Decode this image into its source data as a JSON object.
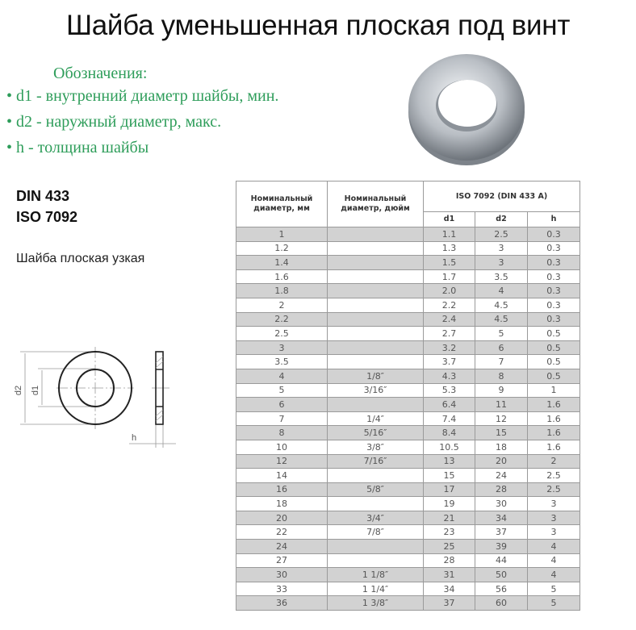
{
  "title": "Шайба уменьшенная плоская под винт",
  "legend": {
    "heading": "Обозначения:",
    "items": [
      "• d1 - внутренний диаметр шайбы, мин.",
      "• d2 - наружный диаметр, макс.",
      "• h - толщина шайбы"
    ]
  },
  "standards": [
    "DIN 433",
    "ISO 7092"
  ],
  "subtitle": "Шайба плоская узкая",
  "drawing_labels": {
    "d2": "d2",
    "d1": "d1",
    "h": "h"
  },
  "table": {
    "col_mm": "Номинальный диаметр, мм",
    "col_inch": "Номинальный диаметр, дюйм",
    "group": "ISO 7092 (DIN 433 A)",
    "sub": [
      "d1",
      "d2",
      "h"
    ],
    "rows": [
      [
        "1",
        "",
        "1.1",
        "2.5",
        "0.3"
      ],
      [
        "1.2",
        "",
        "1.3",
        "3",
        "0.3"
      ],
      [
        "1.4",
        "",
        "1.5",
        "3",
        "0.3"
      ],
      [
        "1.6",
        "",
        "1.7",
        "3.5",
        "0.3"
      ],
      [
        "1.8",
        "",
        "2.0",
        "4",
        "0.3"
      ],
      [
        "2",
        "",
        "2.2",
        "4.5",
        "0.3"
      ],
      [
        "2.2",
        "",
        "2.4",
        "4.5",
        "0.3"
      ],
      [
        "2.5",
        "",
        "2.7",
        "5",
        "0.5"
      ],
      [
        "3",
        "",
        "3.2",
        "6",
        "0.5"
      ],
      [
        "3.5",
        "",
        "3.7",
        "7",
        "0.5"
      ],
      [
        "4",
        "1/8″",
        "4.3",
        "8",
        "0.5"
      ],
      [
        "5",
        "3/16″",
        "5.3",
        "9",
        "1"
      ],
      [
        "6",
        "",
        "6.4",
        "11",
        "1.6"
      ],
      [
        "7",
        "1/4″",
        "7.4",
        "12",
        "1.6"
      ],
      [
        "8",
        "5/16″",
        "8.4",
        "15",
        "1.6"
      ],
      [
        "10",
        "3/8″",
        "10.5",
        "18",
        "1.6"
      ],
      [
        "12",
        "7/16″",
        "13",
        "20",
        "2"
      ],
      [
        "14",
        "",
        "15",
        "24",
        "2.5"
      ],
      [
        "16",
        "5/8″",
        "17",
        "28",
        "2.5"
      ],
      [
        "18",
        "",
        "19",
        "30",
        "3"
      ],
      [
        "20",
        "3/4″",
        "21",
        "34",
        "3"
      ],
      [
        "22",
        "7/8″",
        "23",
        "37",
        "3"
      ],
      [
        "24",
        "",
        "25",
        "39",
        "4"
      ],
      [
        "27",
        "",
        "28",
        "44",
        "4"
      ],
      [
        "30",
        "1 1/8″",
        "31",
        "50",
        "4"
      ],
      [
        "33",
        "1 1/4″",
        "34",
        "56",
        "5"
      ],
      [
        "36",
        "1 3/8″",
        "37",
        "60",
        "5"
      ]
    ]
  }
}
